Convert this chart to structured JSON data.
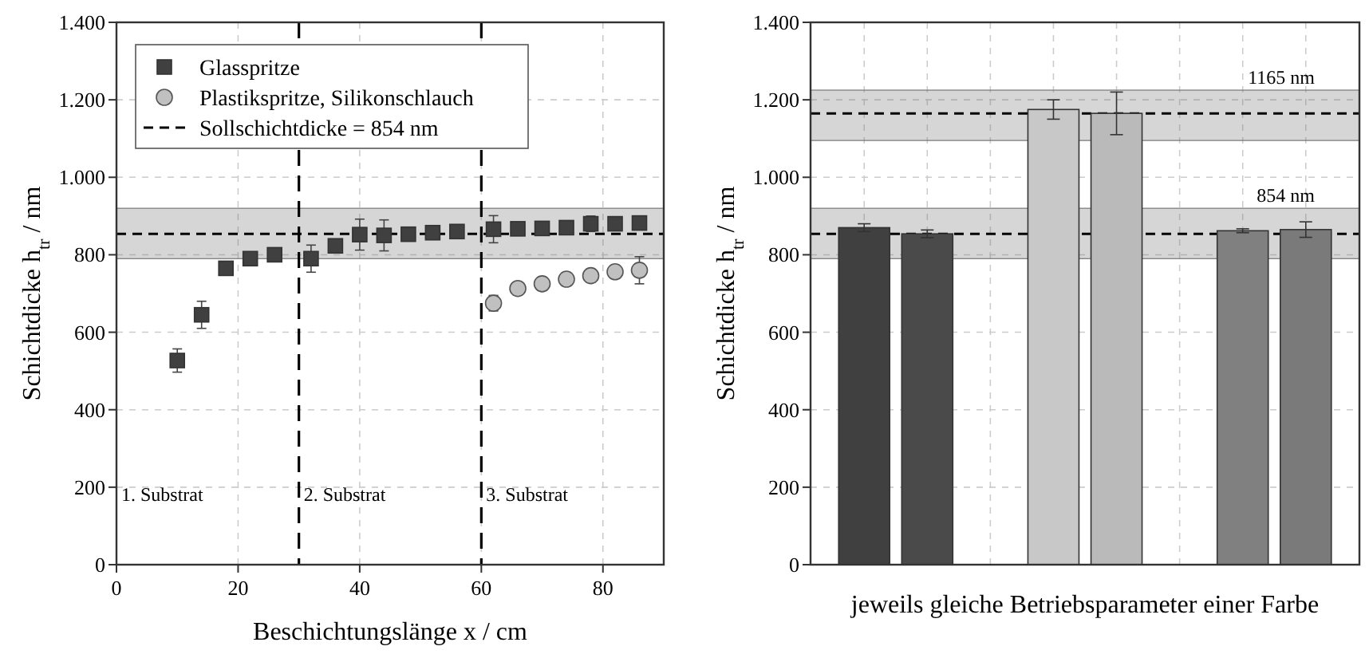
{
  "chart_data": [
    {
      "type": "scatter",
      "xlabel": "Beschichtungslänge x / cm",
      "ylabel": "Schichtdicke h$_{tr}$ / nm",
      "xlim": [
        0,
        90
      ],
      "xticks": [
        0,
        20,
        40,
        60,
        80
      ],
      "ylim": [
        0,
        1400
      ],
      "yticks": [
        0,
        200,
        400,
        600,
        800,
        {
          "value": 1000,
          "label": "1.000"
        },
        {
          "value": 1200,
          "label": "1.200"
        },
        {
          "value": 1400,
          "label": "1.400"
        }
      ],
      "grid": true,
      "legend": "top left",
      "series": [
        {
          "name": "Glasspritze",
          "color": "#404040",
          "marker": "square",
          "x": [
            10,
            14,
            18,
            22,
            26,
            32,
            36,
            40,
            44,
            48,
            52,
            56,
            62,
            66,
            70,
            74,
            78,
            82,
            86
          ],
          "values": [
            527,
            645,
            765,
            790,
            800,
            790,
            823,
            852,
            850,
            853,
            857,
            860,
            866,
            867,
            868,
            870,
            880,
            880,
            882
          ],
          "errors": [
            30,
            35,
            10,
            8,
            10,
            35,
            15,
            40,
            40,
            8,
            8,
            8,
            35,
            10,
            10,
            10,
            20,
            8,
            15
          ]
        },
        {
          "name": "Plastikspritze, Silikonschlauch",
          "color": "#c0c0c0",
          "marker": "circle",
          "x": [
            62,
            66,
            70,
            74,
            78,
            82,
            86
          ],
          "values": [
            675,
            713,
            725,
            737,
            746,
            756,
            760
          ],
          "errors": [
            20,
            8,
            8,
            8,
            8,
            10,
            35
          ]
        }
      ],
      "ref_lines": [
        {
          "axis": "y",
          "value": 854,
          "label": "Sollschichtdicke = 854 nm",
          "line_style": "dashed",
          "color": "#000000"
        },
        {
          "axis": "x",
          "value": 30,
          "line_style": "dashed",
          "color": "#000000"
        },
        {
          "axis": "x",
          "value": 60,
          "line_style": "dashed",
          "color": "#000000"
        }
      ],
      "bands": [
        {
          "axis": "y",
          "from": 790,
          "to": 920,
          "color": "#777777"
        }
      ],
      "annotations": [
        "1. Substrat",
        "2. Substrat",
        "3. Substrat"
      ]
    },
    {
      "type": "bar",
      "xlabel": "jeweils gleiche Betriebsparameter einer Farbe",
      "ylabel": "Schichtdicke h$_{tr}$ / nm",
      "categories": [
        null,
        null,
        null,
        null,
        null,
        null,
        null,
        null
      ],
      "values": [
        870,
        854,
        null,
        1175,
        1165,
        null,
        862,
        865
      ],
      "colors": [
        "#404040",
        "#4a4a4a",
        null,
        "#c8c8c8",
        "#bababa",
        null,
        "#808080",
        "#7a7a7a"
      ],
      "errors": [
        10,
        10,
        null,
        25,
        55,
        null,
        5,
        20
      ],
      "ylim": [
        0,
        1400
      ],
      "yticks": [
        0,
        200,
        400,
        600,
        800,
        {
          "value": 1000,
          "label": "1.000"
        },
        {
          "value": 1200,
          "label": "1.200"
        },
        {
          "value": 1400,
          "label": "1.400"
        }
      ],
      "grid": true,
      "legend": false,
      "ref_lines": [
        {
          "axis": "y",
          "value": 854,
          "label": "854 nm",
          "line_style": "dashed",
          "color": "#000000"
        },
        {
          "axis": "y",
          "value": 1165,
          "label": "1165 nm",
          "line_style": "dashed",
          "color": "#000000"
        }
      ],
      "bands": [
        {
          "axis": "y",
          "from": 790,
          "to": 920,
          "color": "#777777"
        },
        {
          "axis": "y",
          "from": 1095,
          "to": 1225,
          "color": "#777777"
        }
      ]
    }
  ]
}
